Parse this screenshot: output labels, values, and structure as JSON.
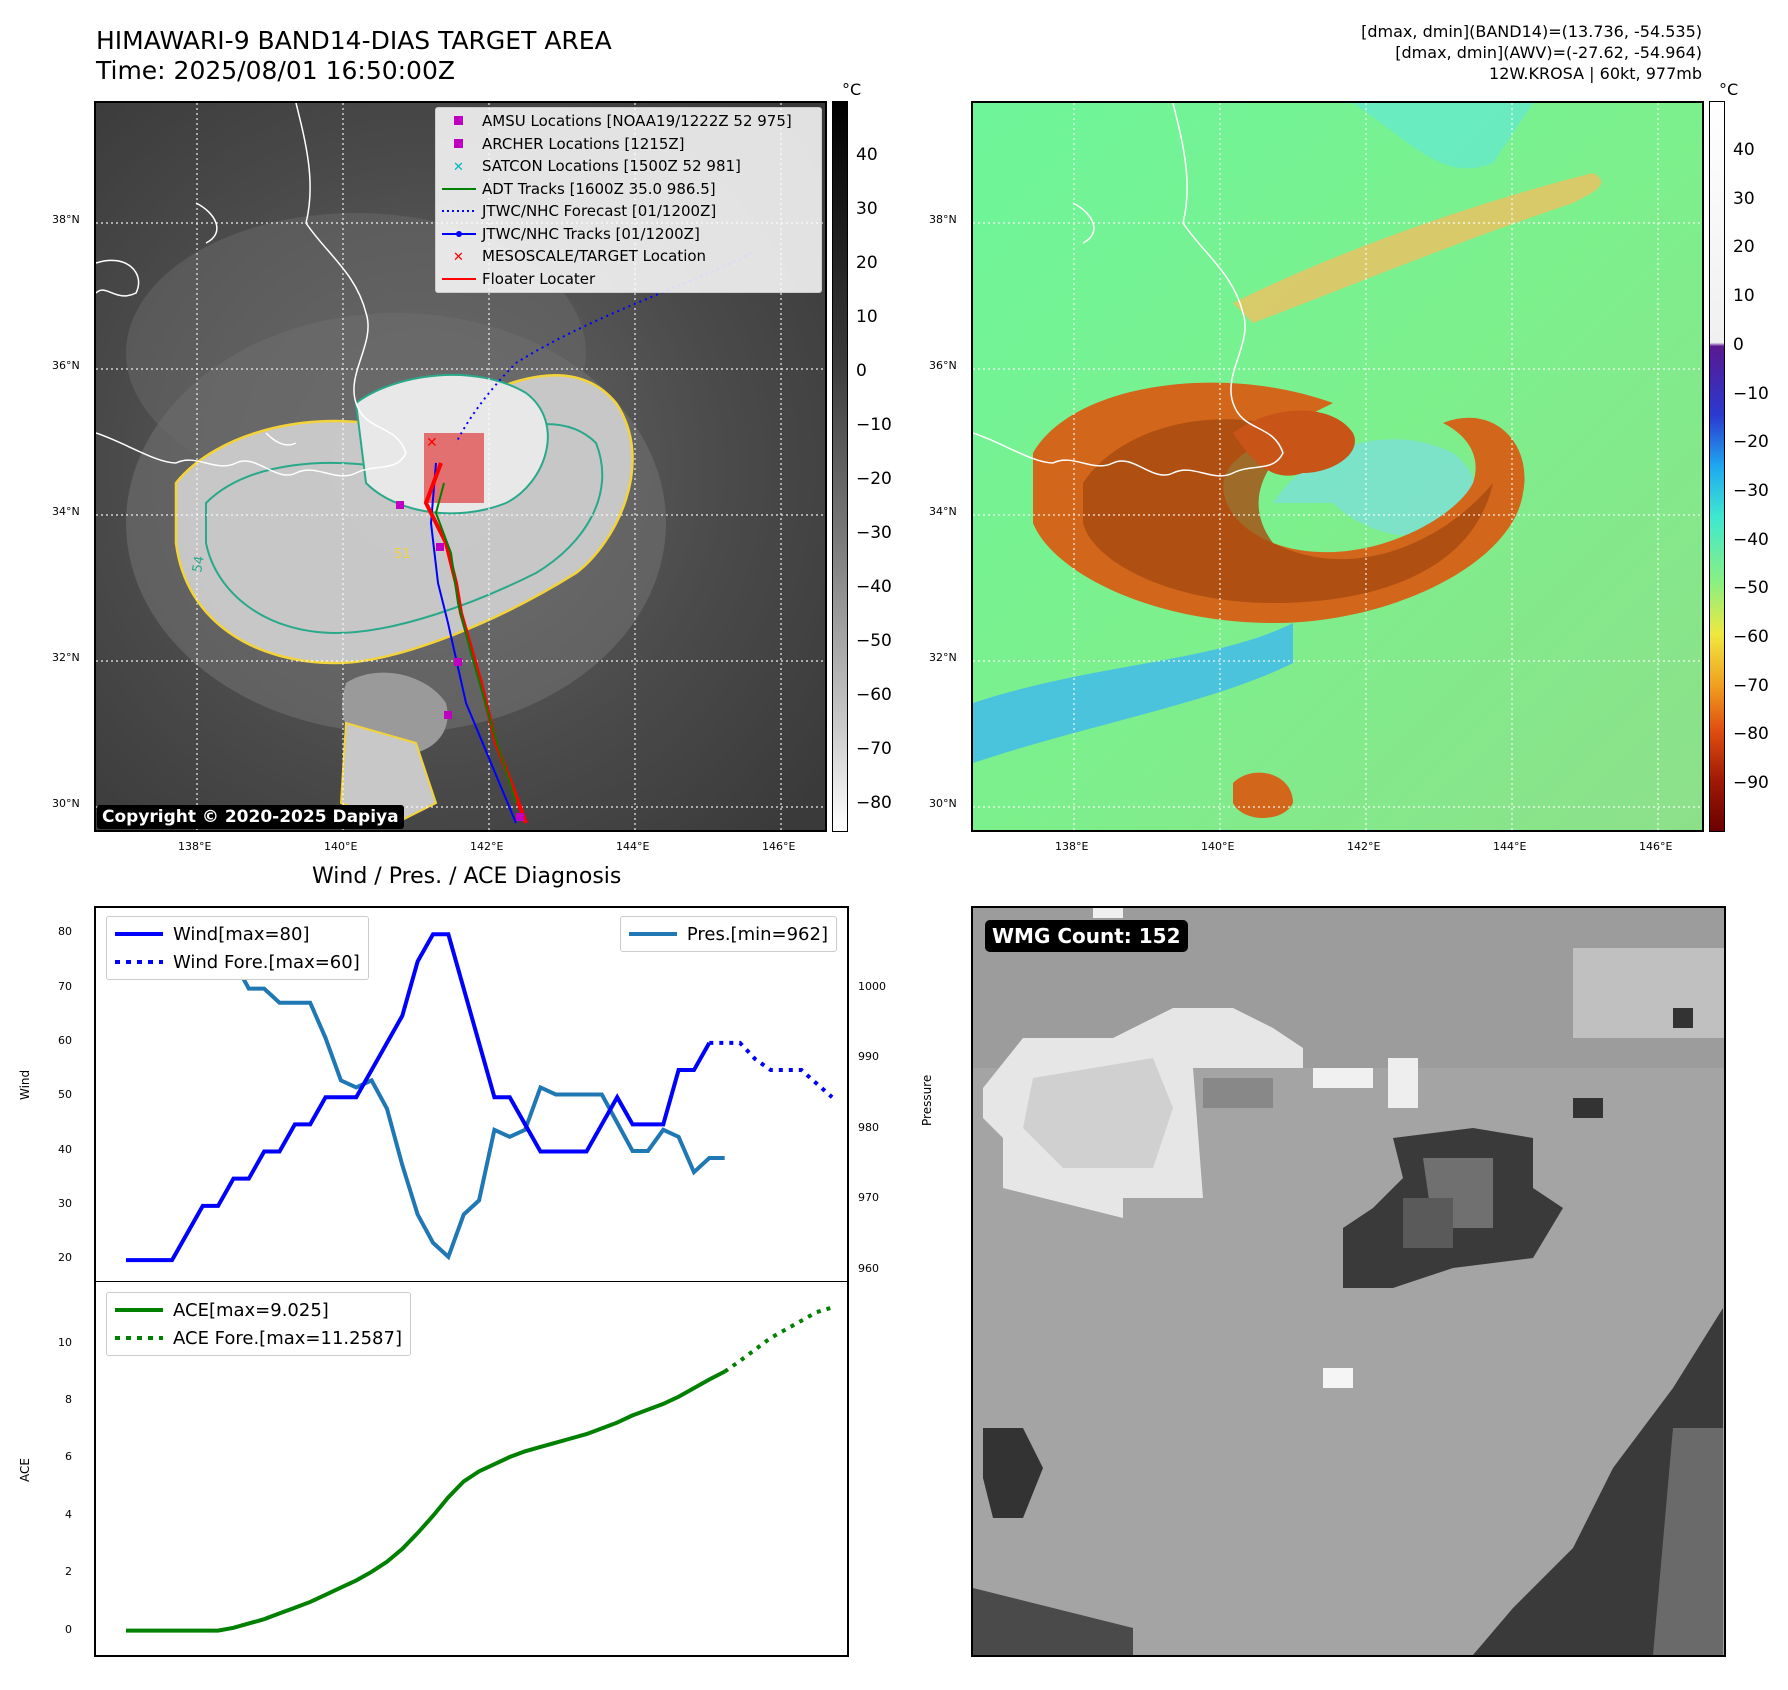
{
  "header": {
    "title_line1": "HIMAWARI-9 BAND14-DIAS TARGET AREA",
    "title_line2": "Time: 2025/08/01 16:50:00Z",
    "info_line1": "[dmax, dmin](BAND14)=(13.736, -54.535)",
    "info_line2": "[dmax, dmin](AWV)=(-27.62, -54.964)",
    "info_line3": "12W.KROSA | 60kt, 977mb"
  },
  "maps": {
    "lat_ticks": [
      "38°N",
      "36°N",
      "34°N",
      "32°N",
      "30°N"
    ],
    "lon_ticks": [
      "138°E",
      "140°E",
      "142°E",
      "144°E",
      "146°E"
    ],
    "copyright": "Copyright © 2020-2025 Dapiya",
    "contour_labels": [
      "54",
      "51"
    ]
  },
  "ir_colorbar": {
    "unit": "°C",
    "ticks": [
      "40",
      "30",
      "20",
      "10",
      "0",
      "−10",
      "−20",
      "−30",
      "−40",
      "−50",
      "−60",
      "−70",
      "−80"
    ]
  },
  "wv_colorbar": {
    "unit": "°C",
    "ticks": [
      "40",
      "30",
      "20",
      "10",
      "0",
      "−10",
      "−20",
      "−30",
      "−40",
      "−50",
      "−60",
      "−70",
      "−80",
      "−90"
    ]
  },
  "map_legend": [
    {
      "label": "AMSU Locations [NOAA19/1222Z 52 975]",
      "symbol": "square",
      "color": "#c000c0"
    },
    {
      "label": "ARCHER Locations [1215Z]",
      "symbol": "square",
      "color": "#c000c0"
    },
    {
      "label": "SATCON Locations [1500Z 52 981]",
      "symbol": "x",
      "color": "#00b8b8"
    },
    {
      "label": "ADT Tracks [1600Z 35.0 986.5]",
      "symbol": "line",
      "color": "#008000"
    },
    {
      "label": "JTWC/NHC Forecast [01/1200Z]",
      "symbol": "dotted",
      "color": "#0000ff"
    },
    {
      "label": "JTWC/NHC Tracks [01/1200Z]",
      "symbol": "line-dot",
      "color": "#0000ff"
    },
    {
      "label": "MESOSCALE/TARGET Location",
      "symbol": "x",
      "color": "#ff0000"
    },
    {
      "label": "Floater Locater",
      "symbol": "line",
      "color": "#ff0000"
    }
  ],
  "diagnosis": {
    "title": "Wind / Pres. / ACE Diagnosis",
    "wind_axis_label": "Wind",
    "pressure_axis_label": "Pressure",
    "ace_axis_label": "ACE",
    "wind_legend": [
      "Wind[max=80]",
      "Wind Fore.[max=60]"
    ],
    "pres_legend": [
      "Pres.[min=962]"
    ],
    "ace_legend": [
      "ACE[max=9.025]",
      "ACE Fore.[max=11.2587]"
    ],
    "wind_ticks": [
      "80",
      "70",
      "60",
      "50",
      "40",
      "30",
      "20"
    ],
    "pres_ticks": [
      "1000",
      "990",
      "980",
      "970",
      "960"
    ],
    "ace_ticks": [
      "10",
      "8",
      "6",
      "4",
      "2",
      "0"
    ]
  },
  "wmg": {
    "count_label": "WMG Count: 152"
  },
  "chart_data": [
    {
      "type": "line",
      "name": "wind",
      "ylim": [
        18,
        83
      ],
      "series": [
        {
          "name": "Wind[max=80]",
          "style": "solid",
          "color": "#0000ff",
          "values": [
            20,
            20,
            20,
            20,
            25,
            30,
            30,
            35,
            35,
            40,
            40,
            45,
            45,
            50,
            50,
            50,
            55,
            60,
            65,
            75,
            80,
            80,
            70,
            60,
            50,
            50,
            45,
            40,
            40,
            40,
            40,
            45,
            50,
            45,
            45,
            45,
            55,
            55,
            60
          ]
        },
        {
          "name": "Wind Fore.[max=60]",
          "style": "dotted",
          "color": "#0000ff",
          "start_index": 38,
          "values": [
            60,
            60,
            60,
            57,
            55,
            55,
            55,
            52.5,
            50
          ]
        }
      ]
    },
    {
      "type": "line",
      "name": "pressure",
      "ylim": [
        960,
        1010
      ],
      "series": [
        {
          "name": "Pres.[min=962]",
          "color": "#1f77b4",
          "values": [
            1008,
            1008,
            1008,
            1008,
            1005,
            1005,
            1004,
            1004,
            1000,
            1000,
            998,
            998,
            998,
            993,
            987,
            986,
            987,
            983,
            975,
            968,
            964,
            962,
            968,
            970,
            980,
            979,
            980,
            986,
            985,
            985,
            985,
            985,
            981,
            977,
            977,
            980,
            979,
            974,
            976,
            976
          ]
        }
      ]
    },
    {
      "type": "line",
      "name": "ace",
      "ylim": [
        -0.5,
        11.8
      ],
      "series": [
        {
          "name": "ACE[max=9.025]",
          "style": "solid",
          "color": "#008000",
          "values": [
            0,
            0,
            0,
            0,
            0,
            0,
            0,
            0.1,
            0.25,
            0.4,
            0.6,
            0.8,
            1.0,
            1.25,
            1.5,
            1.75,
            2.05,
            2.4,
            2.85,
            3.4,
            4.0,
            4.65,
            5.2,
            5.55,
            5.8,
            6.05,
            6.25,
            6.4,
            6.55,
            6.7,
            6.85,
            7.05,
            7.25,
            7.5,
            7.7,
            7.9,
            8.15,
            8.45,
            8.75,
            9.025
          ]
        },
        {
          "name": "ACE Fore.[max=11.2587]",
          "style": "dotted",
          "color": "#008000",
          "start_index": 39,
          "values": [
            9.025,
            9.4,
            9.8,
            10.2,
            10.5,
            10.8,
            11.1,
            11.2587
          ]
        }
      ]
    }
  ]
}
